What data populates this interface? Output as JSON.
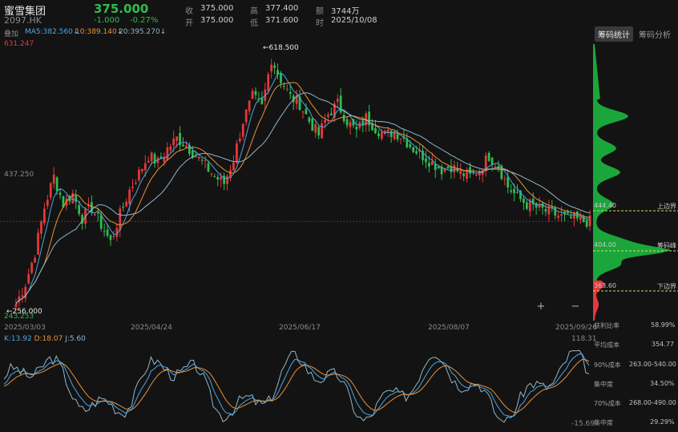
{
  "header": {
    "name": "蜜雪集团",
    "code": "2097.HK",
    "price": "375.000",
    "change": "-1.000",
    "change_pct": "-0.27%",
    "close_label": "收",
    "close_value": "375.000",
    "open_label": "开",
    "open_value": "375.000",
    "high_label": "高",
    "high_value": "377.400",
    "low_label": "低",
    "low_value": "371.600",
    "amount_label": "额",
    "amount_value": "3744万",
    "time_label": "时",
    "time_value": "2025/10/08"
  },
  "ma": {
    "overlay_label": "叠加",
    "ma5": "MA5:382.560↓",
    "ma10": "10:389.140↓",
    "ma20": "20:395.270↓"
  },
  "tabs": {
    "active": "筹码统计",
    "inactive": "筹码分析"
  },
  "price_chart": {
    "top_label": "631.247",
    "mid_label": "437.250",
    "bottom_label": "243.253",
    "max_annotation": "←618.500",
    "min_annotation": "←256.000",
    "dates": [
      "2025/03/03",
      "2025/04/24",
      "2025/06/17",
      "2025/08/07",
      "2025/09/26"
    ]
  },
  "chips": {
    "upper_value": "444.40",
    "upper_label": "上边界",
    "peak_value": "404.00",
    "peak_label": "筹码峰",
    "lower_value": "363.60",
    "lower_label": "下边界"
  },
  "kdj": {
    "k": "K:13.92",
    "d": "D:18.07",
    "j": "J:5.60",
    "top": "118.31",
    "bottom": "-15.69"
  },
  "stats": [
    {
      "k": "获利比率",
      "v": "58.99%"
    },
    {
      "k": "平均成本",
      "v": "354.77"
    },
    {
      "k": "90%成本",
      "v": "263.00-540.00"
    },
    {
      "k": "集中度",
      "v": "34.50%"
    },
    {
      "k": "70%成本",
      "v": "268.00-490.00"
    },
    {
      "k": "集中度",
      "v": "29.29%"
    }
  ],
  "colors": {
    "up": "#e5383b",
    "down": "#2fbd4f",
    "ma5": "#4aa6e6",
    "ma10": "#e8923a",
    "ma20": "#8fb6c9",
    "chip_green": "#1aa63a",
    "chip_red": "#e5383b"
  },
  "chart_data": {
    "type": "candlestick",
    "title": "蜜雪集团 2097.HK",
    "y_range": [
      243.253,
      631.247
    ],
    "x_range": [
      "2025/03/03",
      "2025/10/08"
    ],
    "max_point": 618.5,
    "min_point": 256.0,
    "series": [
      {
        "name": "MA5",
        "last": 382.56
      },
      {
        "name": "10",
        "last": 389.14
      },
      {
        "name": "20",
        "last": 395.27
      }
    ],
    "close_path_approx": [
      256,
      285,
      330,
      395,
      440,
      400,
      415,
      380,
      395,
      370,
      345,
      385,
      420,
      445,
      470,
      460,
      480,
      495,
      485,
      470,
      455,
      440,
      430,
      465,
      520,
      555,
      540,
      610,
      580,
      555,
      545,
      520,
      500,
      530,
      545,
      520,
      505,
      525,
      510,
      500,
      505,
      495,
      480,
      470,
      460,
      450,
      455,
      445,
      440,
      450,
      470,
      455,
      425,
      410,
      400,
      395,
      390,
      385,
      380,
      378,
      375
    ],
    "kdj": {
      "k": 13.92,
      "d": 18.07,
      "j": 5.6,
      "y_range": [
        -15.69,
        118.31
      ]
    }
  }
}
